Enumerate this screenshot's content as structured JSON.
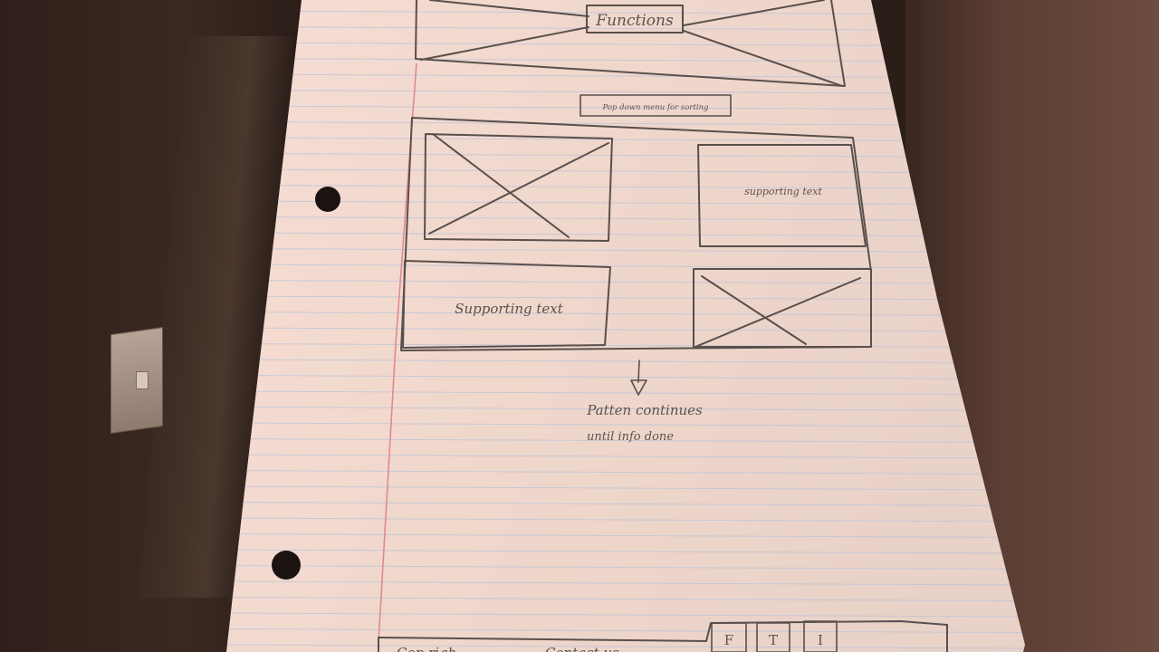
{
  "sketch": {
    "header_label": "Functions",
    "dropdown_label": "Pop down menu for sorting",
    "tile_top_right": "supporting text",
    "tile_bottom_left": "Supporting text",
    "note_line1": "Patten continues",
    "note_line2": "until info done",
    "footer": {
      "left_text": "Cop righ",
      "middle_text": "Contact us",
      "social": [
        "F",
        "T",
        "I"
      ]
    }
  },
  "colors": {
    "paper": "#f1d9cf",
    "rule_line": "#b9c3d9",
    "margin_line": "#e08a90",
    "pencil": "#5a4f4c"
  }
}
